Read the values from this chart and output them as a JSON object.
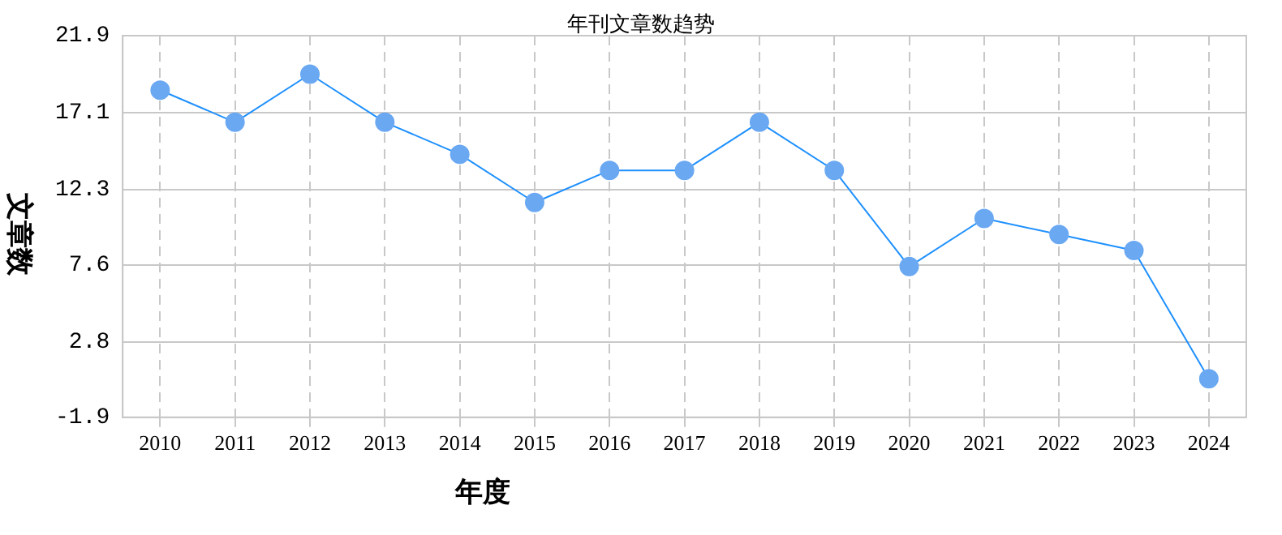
{
  "chart_data": {
    "type": "line",
    "title": "年刊文章数趋势",
    "xlabel": "年度",
    "ylabel": "文章数",
    "categories": [
      "2010",
      "2011",
      "2012",
      "2013",
      "2014",
      "2015",
      "2016",
      "2017",
      "2018",
      "2019",
      "2020",
      "2021",
      "2022",
      "2023",
      "2024"
    ],
    "series": [
      {
        "color": "#1e90ff",
        "values": [
          18.5,
          16.5,
          19.5,
          16.5,
          14.5,
          11.5,
          13.5,
          13.5,
          16.5,
          13.5,
          7.5,
          10.5,
          9.5,
          8.5,
          0.5
        ]
      }
    ],
    "ylim": [
      -1.9,
      21.9
    ],
    "yticks": [
      -1.9,
      2.8,
      7.6,
      12.3,
      17.1,
      21.9
    ],
    "grid": true,
    "legend": false,
    "marker": "circle",
    "line_style": "solid"
  }
}
